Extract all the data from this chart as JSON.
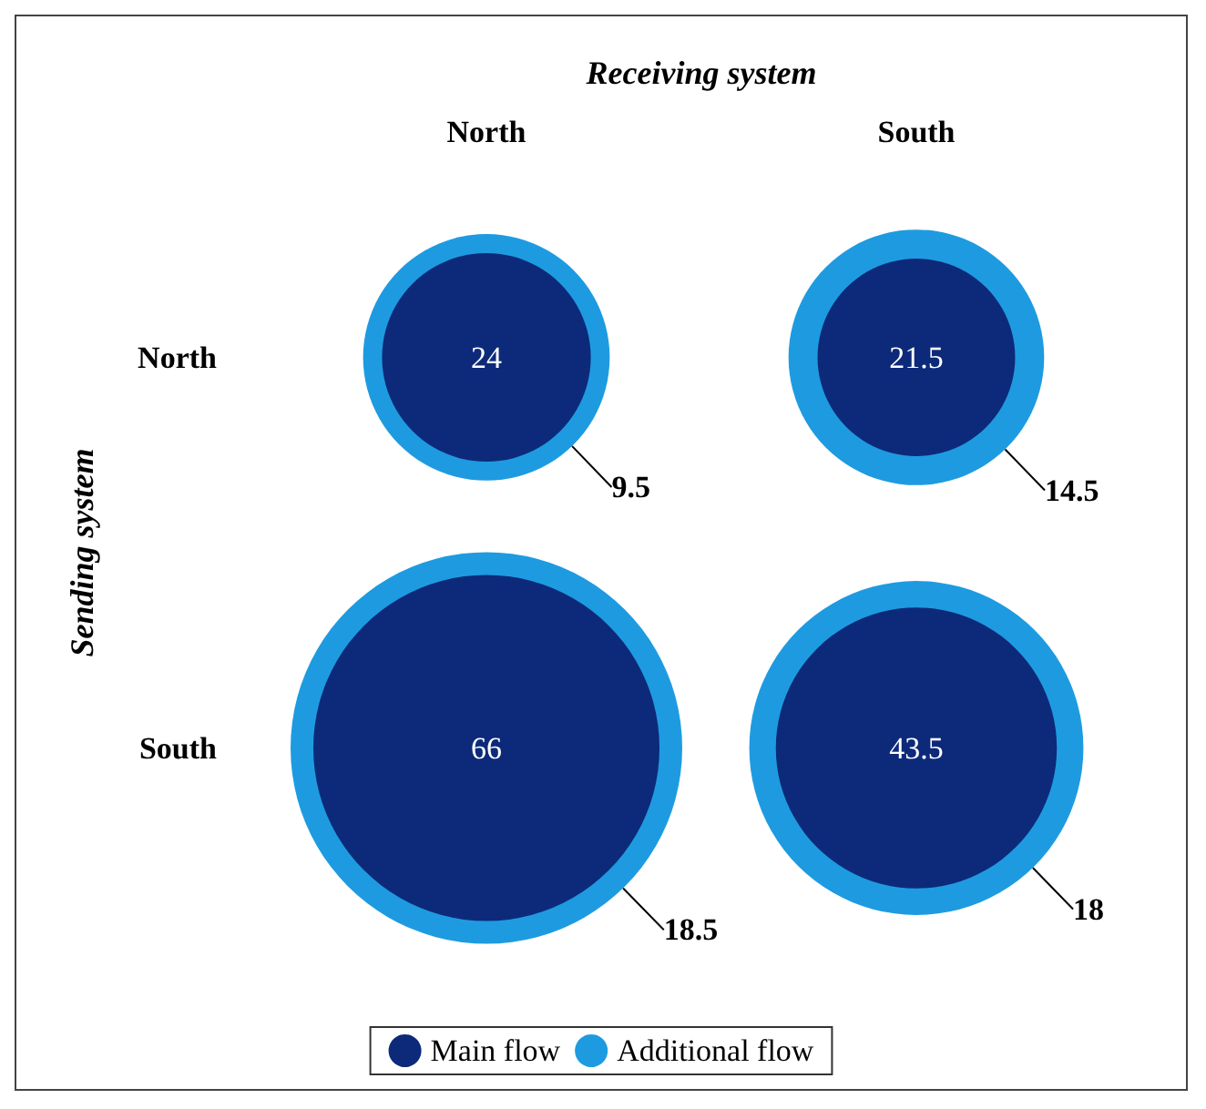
{
  "chart_data": {
    "type": "other",
    "xlabel": "Receiving system",
    "ylabel": "Sending system",
    "categories": [
      "North",
      "South"
    ],
    "y_categories": [
      "North",
      "South"
    ],
    "series": [
      {
        "name": "Main flow",
        "color": "#0d2a7a",
        "values": [
          24,
          21.5
        ]
      },
      {
        "name": "Additional flow",
        "color": "#1e9be0",
        "values": [
          9.5,
          14.5
        ]
      },
      {
        "color": "#0d2a7a",
        "values": [
          66,
          43.5
        ]
      },
      {
        "color": "#1e9be0",
        "values": [
          18.5,
          18
        ]
      }
    ],
    "data_labels": true,
    "legend": "bottom"
  }
}
